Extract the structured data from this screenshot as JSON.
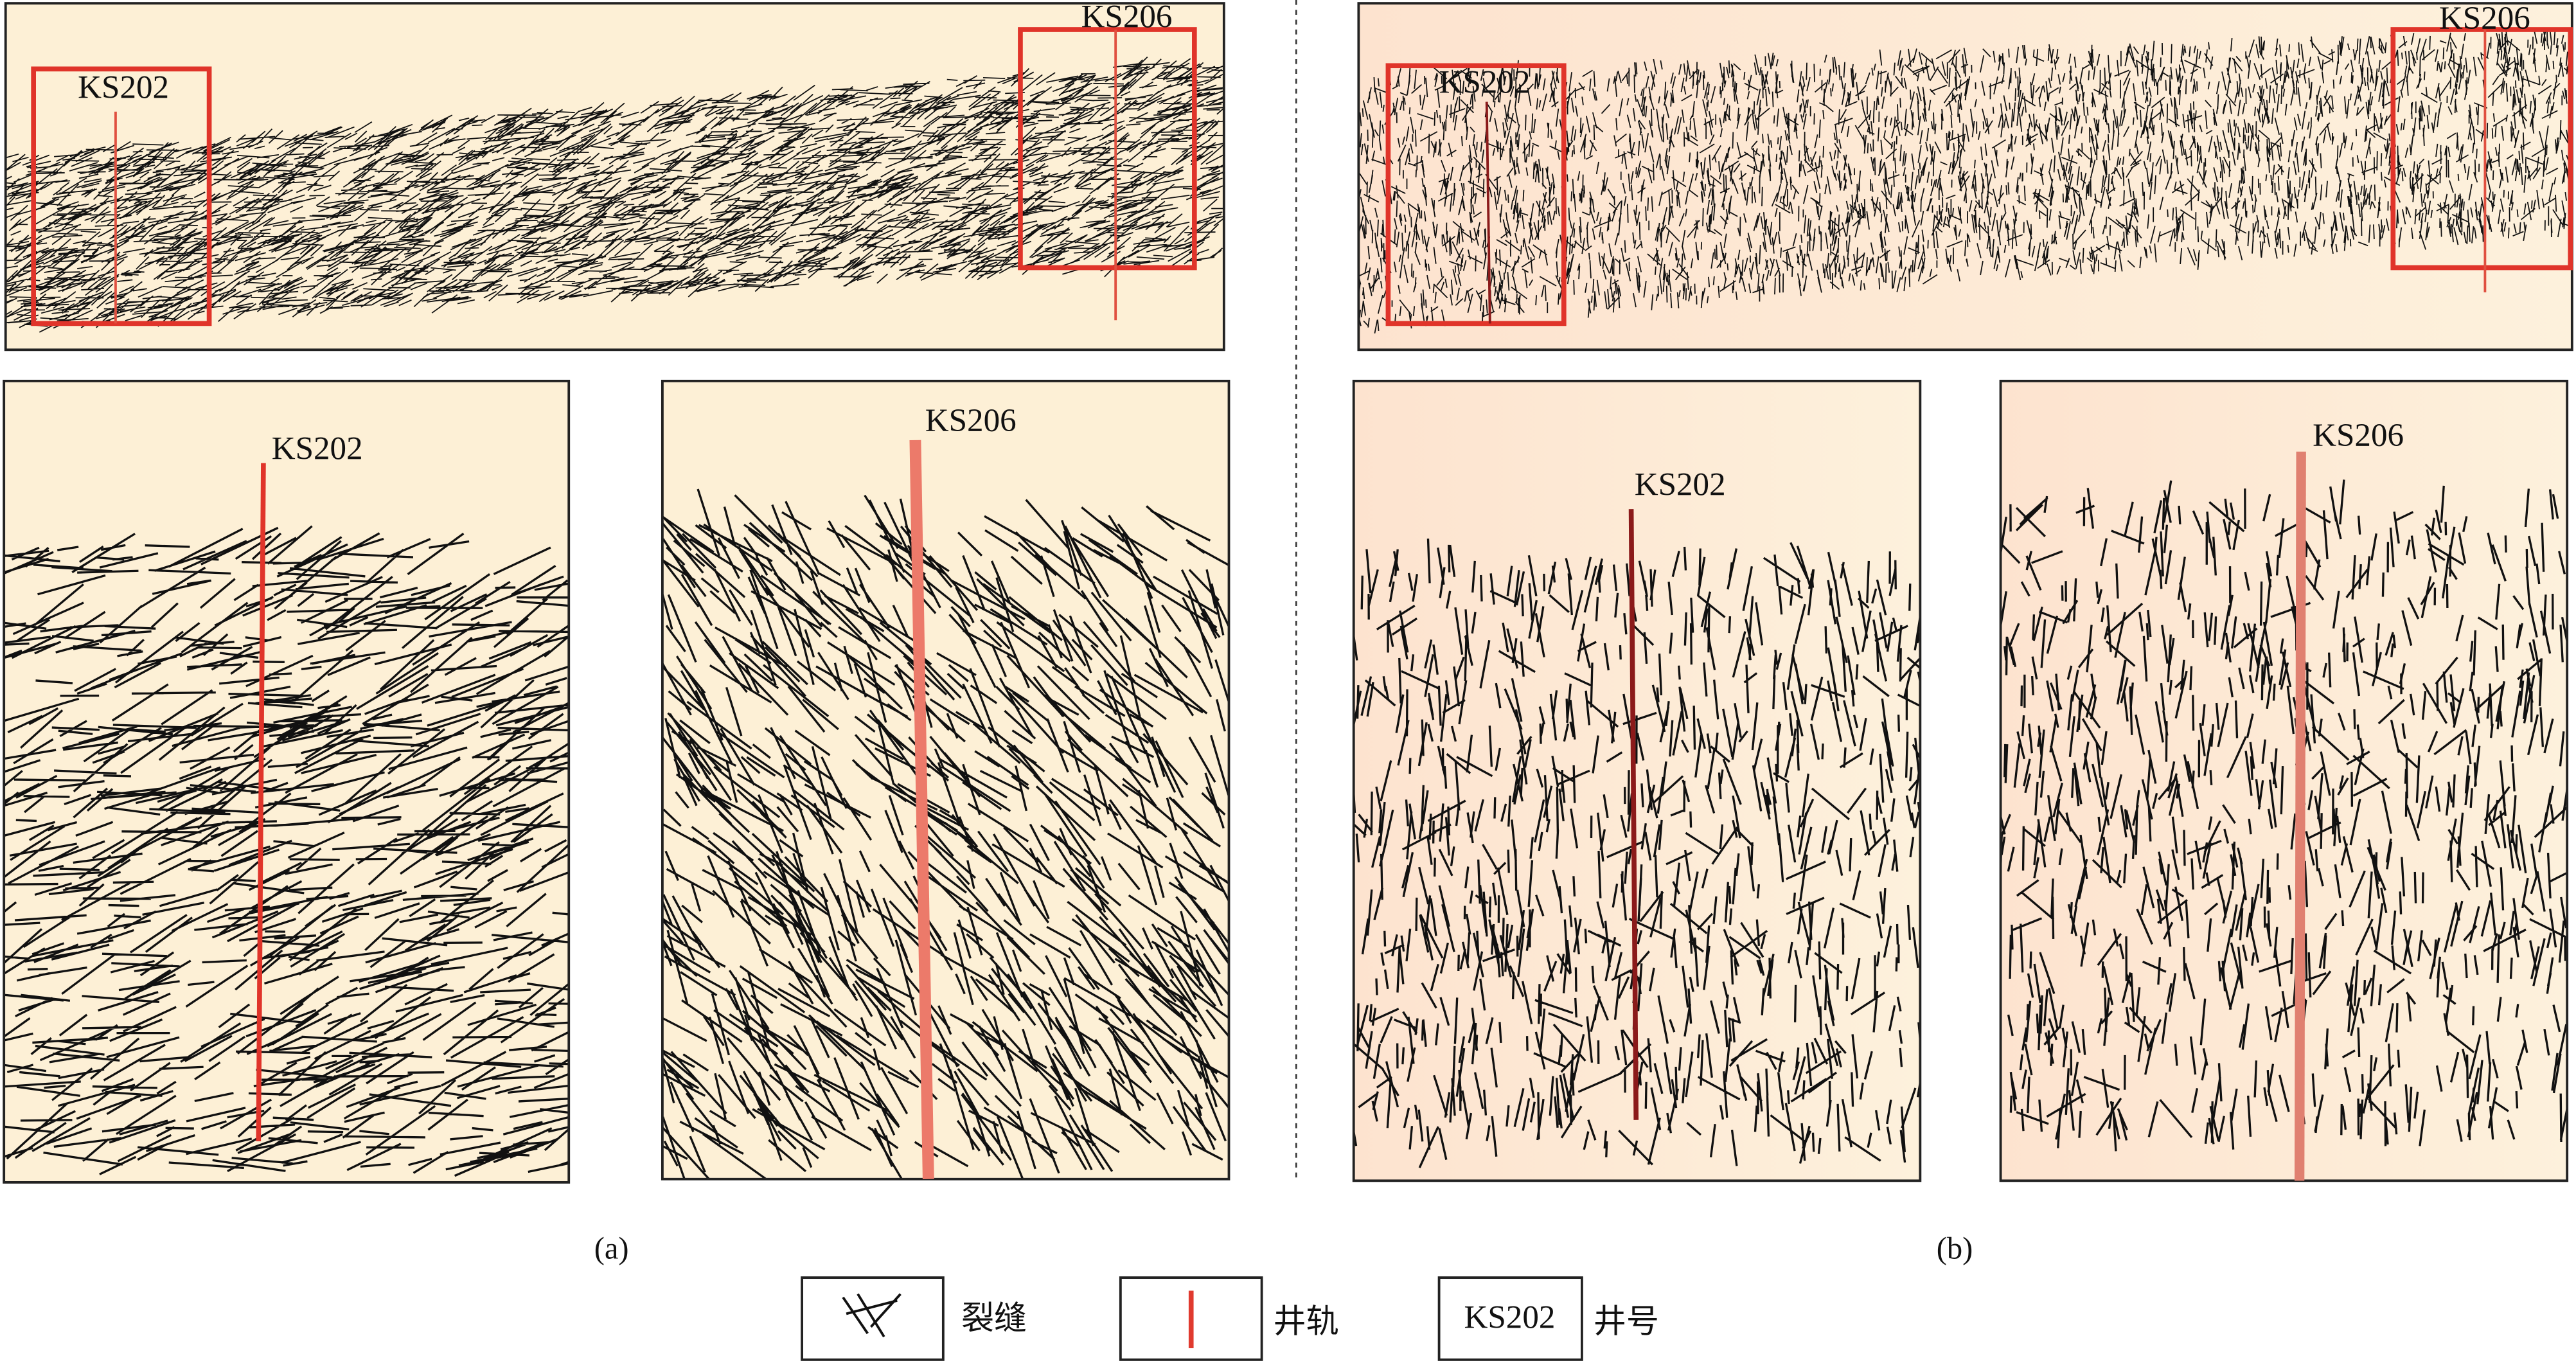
{
  "panels": [
    {
      "label": "(a)",
      "overview": {
        "wells": [
          "KS202",
          "KS206"
        ]
      },
      "details": [
        {
          "well": "KS202"
        },
        {
          "well": "KS206"
        }
      ]
    },
    {
      "label": "(b)",
      "overview": {
        "wells": [
          "KS202",
          "KS206"
        ]
      },
      "details": [
        {
          "well": "KS202"
        },
        {
          "well": "KS206"
        }
      ]
    }
  ],
  "legend": [
    {
      "label": "裂缝"
    },
    {
      "label": "井轨"
    },
    {
      "sample": "KS202",
      "label": "井号"
    }
  ]
}
